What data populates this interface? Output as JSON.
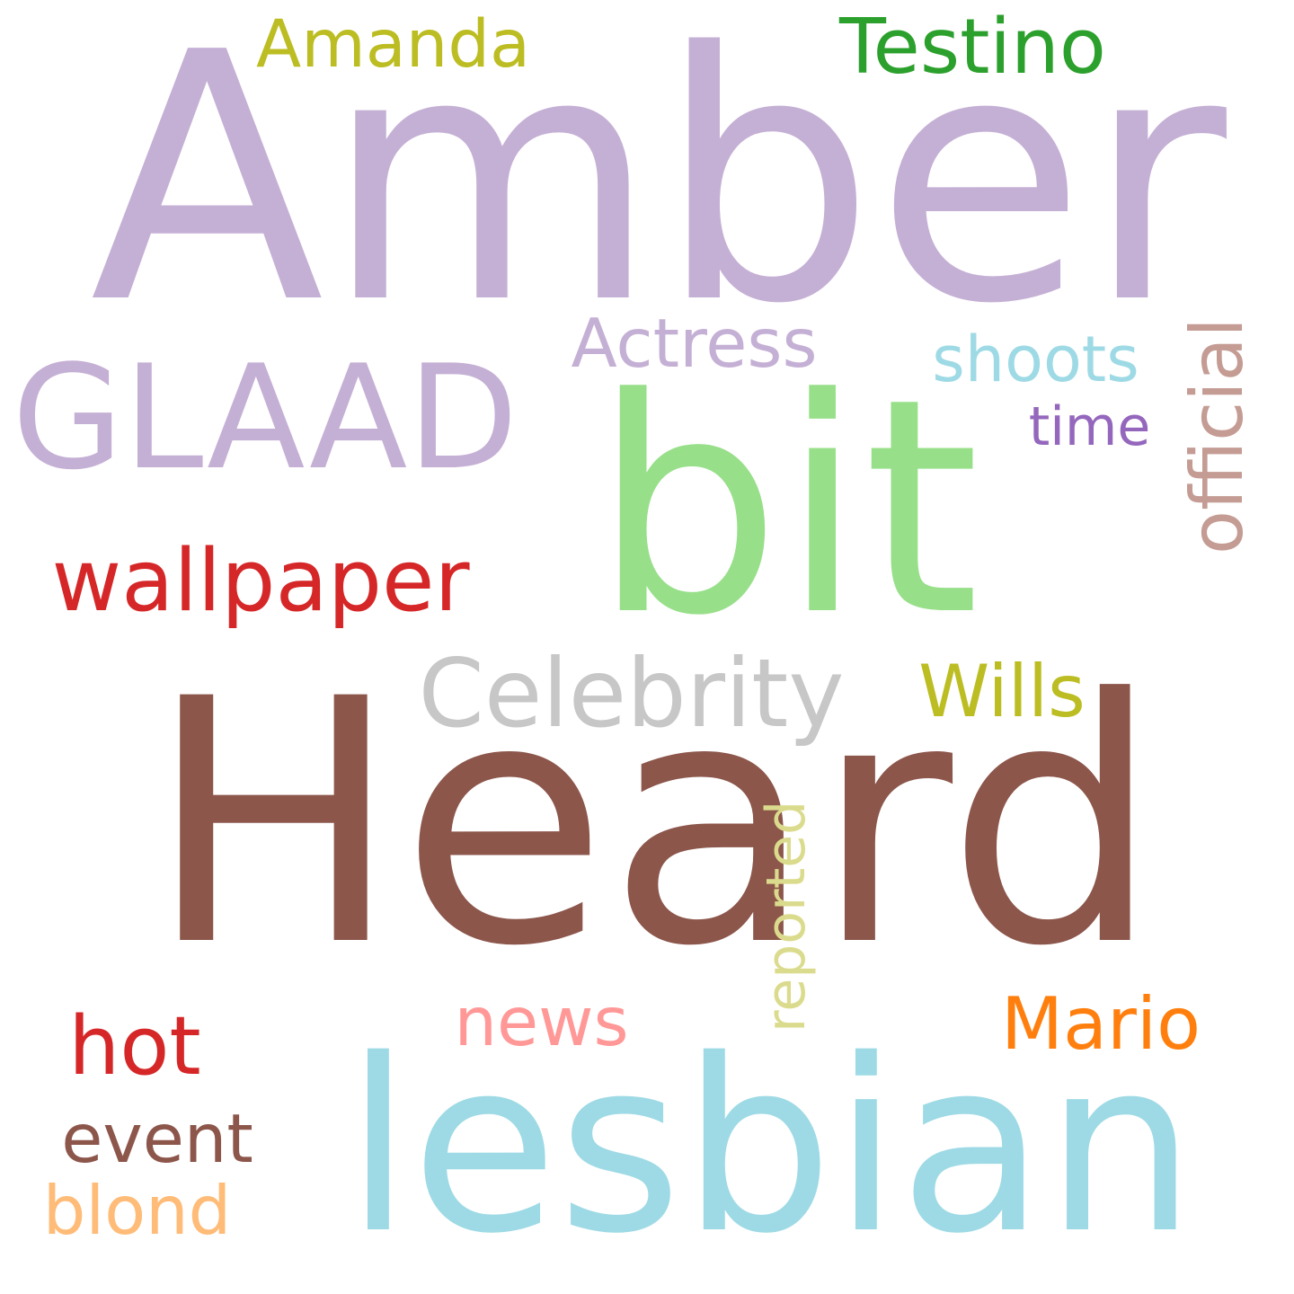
{
  "words": [
    {
      "text": "Amber",
      "color": "#c5b0d5",
      "vertical": false
    },
    {
      "text": "Heard",
      "color": "#8c564b",
      "vertical": false
    },
    {
      "text": "bit",
      "color": "#98df8a",
      "vertical": false
    },
    {
      "text": "lesbian",
      "color": "#9edae5",
      "vertical": false
    },
    {
      "text": "GLAAD",
      "color": "#c5b0d5",
      "vertical": false
    },
    {
      "text": "Testino",
      "color": "#2ca02c",
      "vertical": false
    },
    {
      "text": "Amanda",
      "color": "#bcbd22",
      "vertical": false
    },
    {
      "text": "Actress",
      "color": "#c5b0d5",
      "vertical": false
    },
    {
      "text": "shoots",
      "color": "#9edae5",
      "vertical": false
    },
    {
      "text": "time",
      "color": "#9467bd",
      "vertical": false
    },
    {
      "text": "official",
      "color": "#c49c94",
      "vertical": true
    },
    {
      "text": "wallpaper",
      "color": "#d62728",
      "vertical": false
    },
    {
      "text": "Celebrity",
      "color": "#c7c7c7",
      "vertical": false
    },
    {
      "text": "Wills",
      "color": "#bcbd22",
      "vertical": false
    },
    {
      "text": "reported",
      "color": "#dbdb8d",
      "vertical": true
    },
    {
      "text": "news",
      "color": "#ff9896",
      "vertical": false
    },
    {
      "text": "Mario",
      "color": "#ff7f0e",
      "vertical": false
    },
    {
      "text": "hot",
      "color": "#d62728",
      "vertical": false
    },
    {
      "text": "event",
      "color": "#8c564b",
      "vertical": false
    },
    {
      "text": "blond",
      "color": "#ffbb78",
      "vertical": false
    }
  ]
}
